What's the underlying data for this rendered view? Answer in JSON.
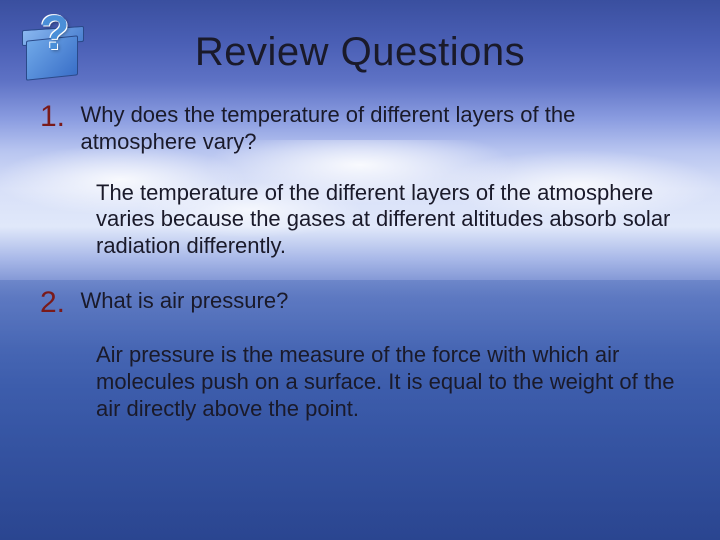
{
  "title": "Review Questions",
  "icon": {
    "glyph": "?",
    "box_color": "#4a7fd0",
    "qmark_color": "#4a8fd8"
  },
  "questions": [
    {
      "number": "1.",
      "prompt": "Why does the temperature of different layers of the atmosphere vary?",
      "answer": "The temperature of the different layers of the atmosphere varies because the gases at different altitudes absorb solar radiation differently."
    },
    {
      "number": "2.",
      "prompt": "What is air pressure?",
      "answer": "Air pressure is the measure of the force with which air molecules push on a surface.  It is equal to the weight of the air directly above the point."
    }
  ],
  "style": {
    "title_fontsize": 40,
    "body_fontsize": 22,
    "number_fontsize": 30,
    "number_color": "#7a1a1a",
    "text_color": "#1a1a2a",
    "font_family": "Comic Sans MS",
    "bg_gradient_top": "#3a4f9f",
    "bg_gradient_mid": "#e0e8fa",
    "bg_gradient_bottom": "#2a4590",
    "slide_width": 720,
    "slide_height": 540
  }
}
